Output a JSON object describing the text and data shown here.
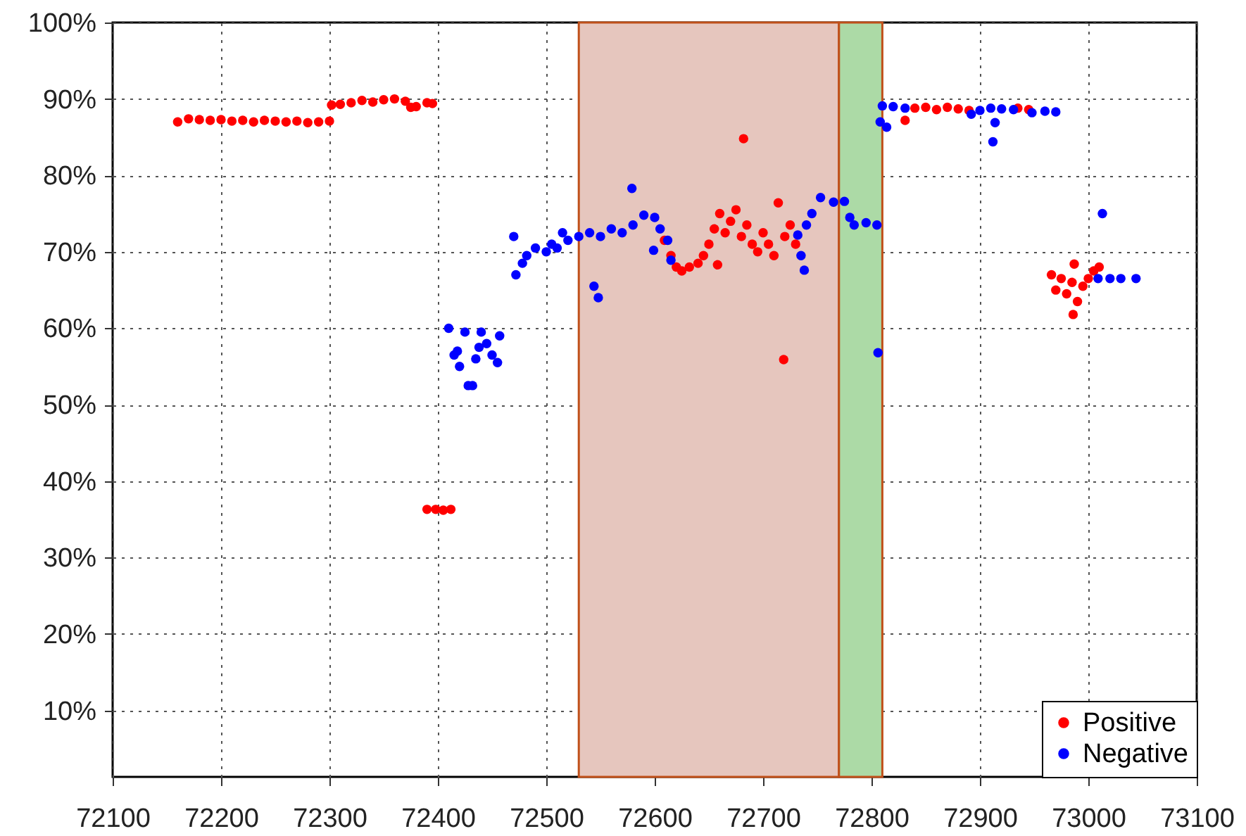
{
  "chart_data": {
    "type": "scatter",
    "xlim": [
      72100,
      73100
    ],
    "ylim": [
      1.3,
      100
    ],
    "xticks": [
      72100,
      72200,
      72300,
      72400,
      72500,
      72600,
      72700,
      72800,
      72900,
      73000,
      73100
    ],
    "yticks": [
      {
        "value": 10,
        "label": "10%"
      },
      {
        "value": 20,
        "label": "20%"
      },
      {
        "value": 30,
        "label": "30%"
      },
      {
        "value": 40,
        "label": "40%"
      },
      {
        "value": 50,
        "label": "50%"
      },
      {
        "value": 60,
        "label": "60%"
      },
      {
        "value": 70,
        "label": "70%"
      },
      {
        "value": 80,
        "label": "80%"
      },
      {
        "value": 90,
        "label": "90%"
      },
      {
        "value": 100,
        "label": "100%"
      }
    ],
    "grid": true,
    "legend": "bottom right",
    "marker": "circle",
    "bands": [
      {
        "axis": "x",
        "from": 72530,
        "to": 72770,
        "color": "#e6c6be"
      },
      {
        "axis": "x",
        "from": 72770,
        "to": 72810,
        "color": "#acdaa6"
      }
    ],
    "series": [
      {
        "name": "Positive",
        "color": "#ff0000",
        "x": [
          72160,
          72170,
          72180,
          72190,
          72200,
          72210,
          72220,
          72230,
          72240,
          72250,
          72260,
          72270,
          72280,
          72290,
          72300,
          72302,
          72310,
          72320,
          72330,
          72340,
          72350,
          72360,
          72370,
          72375,
          72380,
          72390,
          72395,
          72390,
          72398,
          72405,
          72412,
          72609,
          72615,
          72620,
          72625,
          72632,
          72640,
          72645,
          72650,
          72655,
          72658,
          72660,
          72665,
          72670,
          72675,
          72680,
          72682,
          72685,
          72690,
          72695,
          72700,
          72705,
          72710,
          72714,
          72719,
          72720,
          72725,
          72730,
          72831,
          72840,
          72850,
          72860,
          72870,
          72880,
          72890,
          72935,
          72945,
          72966,
          72970,
          72975,
          72980,
          72985,
          72986,
          72987,
          72990,
          72995,
          73000,
          73005,
          73010
        ],
        "values": [
          87.0,
          87.4,
          87.3,
          87.2,
          87.3,
          87.1,
          87.2,
          87.0,
          87.2,
          87.1,
          87.0,
          87.1,
          86.9,
          87.0,
          87.1,
          89.2,
          89.3,
          89.5,
          89.8,
          89.6,
          89.9,
          90.0,
          89.7,
          88.9,
          89.0,
          89.5,
          89.4,
          36.3,
          36.3,
          36.2,
          36.3,
          71.5,
          69.5,
          68.0,
          67.5,
          68.0,
          68.5,
          69.5,
          71.0,
          73.0,
          68.3,
          75.0,
          72.5,
          74.0,
          75.5,
          72.0,
          84.8,
          73.5,
          71.0,
          70.0,
          72.5,
          71.0,
          69.5,
          76.4,
          55.9,
          72.0,
          73.5,
          71.0,
          87.2,
          88.8,
          88.9,
          88.6,
          88.9,
          88.7,
          88.5,
          88.8,
          88.6,
          67.0,
          65.0,
          66.5,
          64.5,
          66.0,
          61.8,
          68.4,
          63.5,
          65.5,
          66.5,
          67.5,
          68.0
        ]
      },
      {
        "name": "Negative",
        "color": "#0000ff",
        "x": [
          72410,
          72415,
          72418,
          72420,
          72425,
          72428,
          72432,
          72435,
          72438,
          72440,
          72445,
          72450,
          72455,
          72457,
          72470,
          72472,
          72478,
          72482,
          72490,
          72500,
          72505,
          72510,
          72515,
          72520,
          72530,
          72540,
          72544,
          72548,
          72550,
          72560,
          72570,
          72579,
          72580,
          72590,
          72599,
          72600,
          72605,
          72612,
          72615,
          72732,
          72735,
          72738,
          72740,
          72745,
          72753,
          72765,
          72775,
          72780,
          72784,
          72795,
          72805,
          72806,
          72808,
          72810,
          72814,
          72820,
          72831,
          72892,
          72900,
          72910,
          72912,
          72914,
          72920,
          72931,
          72948,
          72960,
          72970,
          73009,
          73013,
          73020,
          73030,
          73044
        ],
        "values": [
          60.0,
          56.5,
          57.0,
          55.0,
          59.5,
          52.5,
          52.5,
          56.0,
          57.5,
          59.5,
          58.0,
          56.5,
          55.5,
          59.0,
          72.0,
          67.0,
          68.5,
          69.5,
          70.5,
          70.0,
          71.0,
          70.5,
          72.5,
          71.5,
          72.0,
          72.5,
          65.5,
          64.0,
          72.0,
          73.0,
          72.5,
          78.3,
          73.5,
          74.8,
          70.2,
          74.5,
          73.0,
          71.5,
          68.9,
          72.2,
          69.5,
          67.6,
          73.5,
          75.0,
          77.1,
          76.5,
          76.6,
          74.5,
          73.5,
          73.8,
          73.5,
          56.8,
          87.0,
          89.1,
          86.3,
          89.0,
          88.8,
          88.0,
          88.5,
          88.8,
          84.4,
          86.9,
          88.7,
          88.6,
          88.2,
          88.4,
          88.3,
          66.5,
          75.0,
          66.5,
          66.5,
          66.5
        ]
      }
    ]
  }
}
